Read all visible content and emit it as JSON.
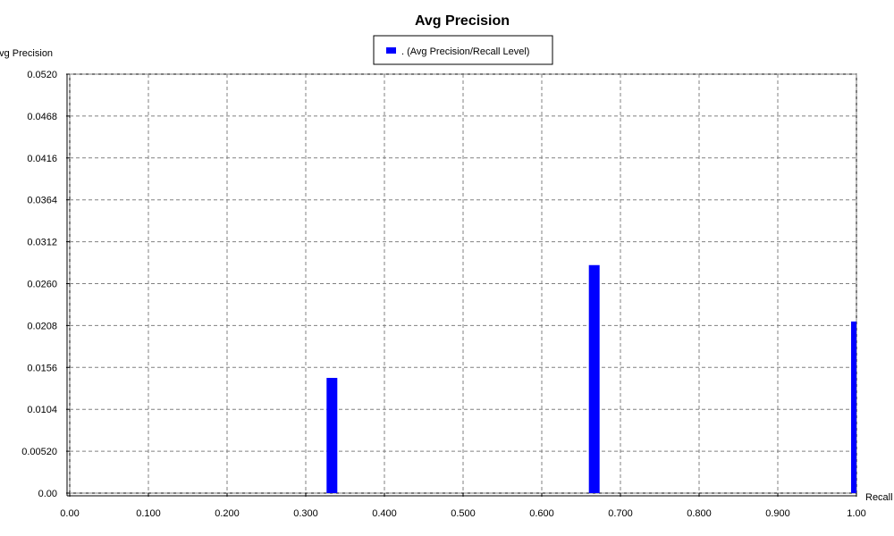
{
  "chart_data": {
    "type": "bar",
    "title": "Avg Precision",
    "xlabel": "Recall",
    "ylabel": "Avg Precision",
    "legend": {
      "position": "top-center",
      "entries": [
        ". (Avg Precision/Recall Level)"
      ]
    },
    "grid": true,
    "xlim": [
      0,
      1
    ],
    "ylim": [
      0,
      0.052
    ],
    "x_ticks": [
      "0.00",
      "0.100",
      "0.200",
      "0.300",
      "0.400",
      "0.500",
      "0.600",
      "0.700",
      "0.800",
      "0.900",
      "1.00"
    ],
    "x_tick_values": [
      0,
      0.1,
      0.2,
      0.3,
      0.4,
      0.5,
      0.6,
      0.7,
      0.8,
      0.9,
      1.0
    ],
    "y_ticks": [
      "0.00",
      "0.00520",
      "0.0104",
      "0.0156",
      "0.0208",
      "0.0260",
      "0.0312",
      "0.0364",
      "0.0416",
      "0.0468",
      "0.0520"
    ],
    "y_tick_values": [
      0,
      0.0052,
      0.0104,
      0.0156,
      0.0208,
      0.026,
      0.0312,
      0.0364,
      0.0416,
      0.0468,
      0.052
    ],
    "series": [
      {
        "name": ". (Avg Precision/Recall Level)",
        "color": "#0000ff",
        "points": [
          {
            "x": 0.3333,
            "y": 0.0143
          },
          {
            "x": 0.6667,
            "y": 0.0283
          },
          {
            "x": 1.0,
            "y": 0.0213
          }
        ]
      }
    ]
  }
}
